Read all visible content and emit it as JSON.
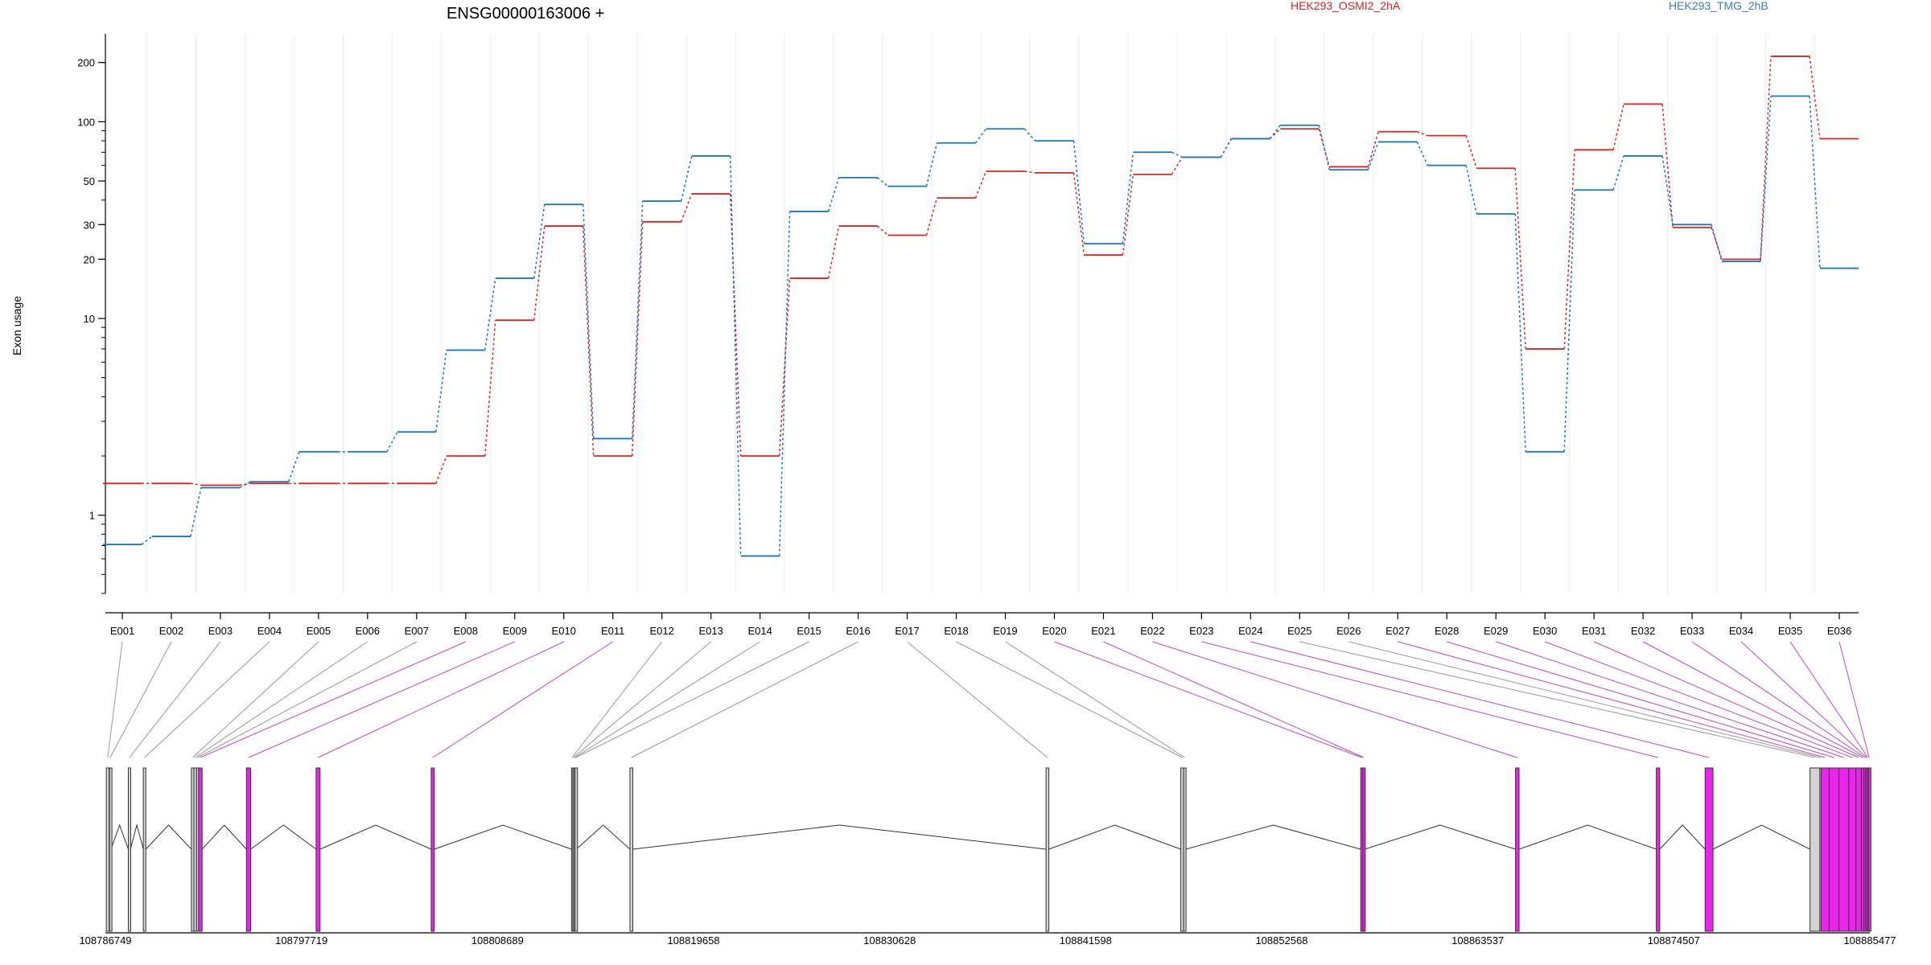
{
  "chart_data": {
    "type": "line",
    "title": "ENSG00000163006 +",
    "ylabel": "Exon usage",
    "xlabel": "",
    "y_scale": "log",
    "ylim": [
      0.4,
      280
    ],
    "y_ticks": [
      1,
      10,
      20,
      30,
      50,
      100,
      200
    ],
    "y_tick_labels": [
      "1",
      "10",
      "20",
      "30",
      "50",
      "100",
      "200"
    ],
    "grid": "vertical",
    "categories": [
      "E001",
      "E002",
      "E003",
      "E004",
      "E005",
      "E006",
      "E007",
      "E008",
      "E009",
      "E010",
      "E011",
      "E012",
      "E013",
      "E014",
      "E015",
      "E016",
      "E017",
      "E018",
      "E019",
      "E020",
      "E021",
      "E022",
      "E023",
      "E024",
      "E025",
      "E026",
      "E027",
      "E028",
      "E029",
      "E030",
      "E031",
      "E032",
      "E033",
      "E034",
      "E035",
      "E036"
    ],
    "series": [
      {
        "name": "HEK293_OSMI2_2hA",
        "color": "#d62728",
        "values": [
          1.45,
          1.45,
          1.42,
          1.45,
          1.45,
          1.45,
          1.45,
          2.0,
          9.8,
          29.5,
          2.0,
          31.0,
          43.0,
          2.0,
          16.0,
          29.5,
          26.5,
          41.0,
          56.0,
          55.0,
          21.0,
          54.0,
          66.0,
          82.0,
          92.0,
          59.0,
          89.0,
          85.0,
          58.0,
          7.0,
          72.0,
          123.0,
          29.0,
          20.0,
          215.0,
          82.0
        ]
      },
      {
        "name": "HEK293_TMG_2hB",
        "color": "#1f77b4",
        "values": [
          0.71,
          0.78,
          1.38,
          1.48,
          2.1,
          2.1,
          2.65,
          6.9,
          16.0,
          38.0,
          2.45,
          39.5,
          67.0,
          0.62,
          35.0,
          52.0,
          47.0,
          78.0,
          92.0,
          80.0,
          24.0,
          70.0,
          66.0,
          82.0,
          96.0,
          57.0,
          79.0,
          60.0,
          34.0,
          2.1,
          45.0,
          67.0,
          30.0,
          19.5,
          135.0,
          18.0
        ]
      }
    ],
    "legend": [
      "HEK293_OSMI2_2hA",
      "HEK293_TMG_2hB"
    ],
    "legend_placement": "top",
    "genomic_axis": {
      "range": [
        108786749,
        108885477
      ],
      "tick_labels": [
        "108786749",
        "108797719",
        "108808689",
        "108819658",
        "108830628",
        "108841598",
        "108852568",
        "108863537",
        "108874507",
        "108885477"
      ]
    },
    "exons": [
      {
        "id": "E001",
        "start": 108786800,
        "end": 108786960,
        "color": "#d3d3d3"
      },
      {
        "id": "E002",
        "start": 108786980,
        "end": 108787060,
        "color": "#d3d3d3"
      },
      {
        "id": "E003",
        "start": 108788030,
        "end": 108788150,
        "color": "#d3d3d3"
      },
      {
        "id": "E004",
        "start": 108788870,
        "end": 108789010,
        "color": "#d3d3d3"
      },
      {
        "id": "E005",
        "start": 108791560,
        "end": 108791700,
        "color": "#d3d3d3"
      },
      {
        "id": "E006",
        "start": 108791700,
        "end": 108791850,
        "color": "#d3d3d3"
      },
      {
        "id": "E007",
        "start": 108791850,
        "end": 108791960,
        "color": "#d3d3d3"
      },
      {
        "id": "E008",
        "start": 108791960,
        "end": 108792160,
        "color": "#ee22ee"
      },
      {
        "id": "E009",
        "start": 108794640,
        "end": 108794880,
        "color": "#ee22ee"
      },
      {
        "id": "E010",
        "start": 108798540,
        "end": 108798760,
        "color": "#ee22ee"
      },
      {
        "id": "E011",
        "start": 108804980,
        "end": 108805150,
        "color": "#ee22ee"
      },
      {
        "id": "E012",
        "start": 108812830,
        "end": 108812900,
        "color": "#d3d3d3"
      },
      {
        "id": "E013",
        "start": 108812900,
        "end": 108812960,
        "color": "#d3d3d3"
      },
      {
        "id": "E014",
        "start": 108812960,
        "end": 108813030,
        "color": "#d3d3d3"
      },
      {
        "id": "E015",
        "start": 108813030,
        "end": 108813100,
        "color": "#d3d3d3"
      },
      {
        "id": "E016",
        "start": 108816100,
        "end": 108816260,
        "color": "#d3d3d3"
      },
      {
        "id": "E017",
        "start": 108839380,
        "end": 108839540,
        "color": "#d3d3d3"
      },
      {
        "id": "E018",
        "start": 108846920,
        "end": 108847080,
        "color": "#d3d3d3"
      },
      {
        "id": "E019",
        "start": 108847080,
        "end": 108847200,
        "color": "#d3d3d3"
      },
      {
        "id": "E020",
        "start": 108856990,
        "end": 108857110,
        "color": "#ee22ee"
      },
      {
        "id": "E021",
        "start": 108857110,
        "end": 108857210,
        "color": "#ee22ee"
      },
      {
        "id": "E022",
        "start": 108865650,
        "end": 108865850,
        "color": "#ee22ee"
      },
      {
        "id": "E023",
        "start": 108873530,
        "end": 108873720,
        "color": "#ee22ee"
      },
      {
        "id": "E024",
        "start": 108876260,
        "end": 108876700,
        "color": "#ee22ee"
      },
      {
        "id": "E025",
        "start": 108882130,
        "end": 108882680,
        "color": "#d3d3d3"
      },
      {
        "id": "E026",
        "start": 108882680,
        "end": 108882750,
        "color": "#d3d3d3"
      },
      {
        "id": "E027",
        "start": 108882750,
        "end": 108883200,
        "color": "#ee22ee"
      },
      {
        "id": "E028",
        "start": 108883200,
        "end": 108883750,
        "color": "#ee22ee"
      },
      {
        "id": "E029",
        "start": 108883750,
        "end": 108884300,
        "color": "#ee22ee"
      },
      {
        "id": "E030",
        "start": 108884300,
        "end": 108884700,
        "color": "#ee22ee"
      },
      {
        "id": "E031",
        "start": 108884700,
        "end": 108885000,
        "color": "#ee22ee"
      },
      {
        "id": "E032",
        "start": 108885000,
        "end": 108885150,
        "color": "#ee22ee"
      },
      {
        "id": "E033",
        "start": 108885150,
        "end": 108885250,
        "color": "#ee22ee"
      },
      {
        "id": "E034",
        "start": 108885250,
        "end": 108885330,
        "color": "#ee22ee"
      },
      {
        "id": "E035",
        "start": 108885330,
        "end": 108885400,
        "color": "#ee22ee"
      },
      {
        "id": "E036",
        "start": 108885400,
        "end": 108885470,
        "color": "#ee22ee"
      }
    ]
  }
}
